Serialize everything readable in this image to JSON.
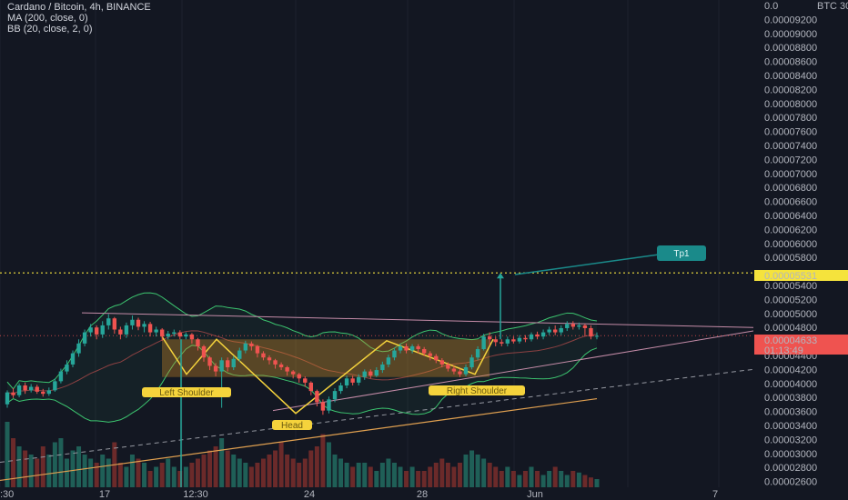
{
  "legend": {
    "symbol": "Cardano / Bitcoin, 4h, BINANCE",
    "ma": "MA (200, close, 0)",
    "bb": "BB (20, close, 2, 0)"
  },
  "annotations": {
    "left_shoulder": "Left Shoulder",
    "head": "Head",
    "right_shoulder": "Right Shoulder",
    "tp1": "Tp1"
  },
  "price_tags": {
    "target": "0.00005531",
    "current": "0.00004633",
    "countdown": "01:13:49"
  },
  "colors": {
    "background": "#131722",
    "up": "#26a69a",
    "down": "#ef5350",
    "target_line": "#f5e33c",
    "label_bg": "#f5d33c",
    "bb_band": "#3cc46f",
    "ma_line": "#e0a050",
    "resistance": "#c58ca8",
    "tp_box": "#1a8a8a"
  },
  "chart_data": {
    "type": "candlestick",
    "title": "Cardano / Bitcoin, 4h, BINANCE",
    "y_axis": {
      "unit": "BTC",
      "ticks": [
        "0.0",
        "0.00009200",
        "0.00009000",
        "0.00008800",
        "0.00008600",
        "0.00008400",
        "0.00008200",
        "0.00008000",
        "0.00007800",
        "0.00007600",
        "0.00007400",
        "0.00007200",
        "0.00007000",
        "0.00006800",
        "0.00006600",
        "0.00006400",
        "0.00006200",
        "0.00006000",
        "0.00005800",
        "0.00005600",
        "0.00005400",
        "0.00005200",
        "0.00005000",
        "0.00004800",
        "0.00004600",
        "0.00004400",
        "0.00004200",
        "0.00004000",
        "0.00003800",
        "0.00003600",
        "0.00003400",
        "0.00003200",
        "0.00003000",
        "0.00002800",
        "0.00002600"
      ],
      "ylim": [
        2.54e-05,
        9.36e-05
      ]
    },
    "x_axis": {
      "ticks": [
        ":30",
        "17",
        "12:30",
        "24",
        "28",
        "Jun",
        "7"
      ]
    },
    "last_price": 4.633e-05,
    "target_price": 5.531e-05,
    "candles": [
      [
        3.65e-05,
        3.82e-05,
        3.6e-05,
        3.85e-05
      ],
      [
        3.82e-05,
        3.78e-05,
        3.74e-05,
        3.88e-05
      ],
      [
        3.78e-05,
        3.92e-05,
        3.75e-05,
        3.95e-05
      ],
      [
        3.92e-05,
        3.85e-05,
        3.8e-05,
        3.96e-05
      ],
      [
        3.85e-05,
        3.9e-05,
        3.82e-05,
        3.94e-05
      ],
      [
        3.9e-05,
        3.83e-05,
        3.8e-05,
        3.93e-05
      ],
      [
        3.83e-05,
        3.8e-05,
        3.76e-05,
        3.87e-05
      ],
      [
        3.8e-05,
        3.85e-05,
        3.77e-05,
        3.89e-05
      ],
      [
        3.85e-05,
        3.98e-05,
        3.83e-05,
        4.02e-05
      ],
      [
        3.98e-05,
        4.12e-05,
        3.95e-05,
        4.16e-05
      ],
      [
        4.12e-05,
        4.22e-05,
        4.08e-05,
        4.28e-05
      ],
      [
        4.22e-05,
        4.38e-05,
        4.18e-05,
        4.42e-05
      ],
      [
        4.38e-05,
        4.52e-05,
        4.33e-05,
        4.58e-05
      ],
      [
        4.52e-05,
        4.68e-05,
        4.48e-05,
        4.72e-05
      ],
      [
        4.68e-05,
        4.75e-05,
        4.62e-05,
        4.8e-05
      ],
      [
        4.75e-05,
        4.65e-05,
        4.58e-05,
        4.78e-05
      ],
      [
        4.65e-05,
        4.78e-05,
        4.6e-05,
        4.84e-05
      ],
      [
        4.78e-05,
        4.88e-05,
        4.72e-05,
        4.94e-05
      ],
      [
        4.88e-05,
        4.72e-05,
        4.66e-05,
        4.9e-05
      ],
      [
        4.72e-05,
        4.65e-05,
        4.58e-05,
        4.76e-05
      ],
      [
        4.65e-05,
        4.78e-05,
        4.6e-05,
        4.82e-05
      ],
      [
        4.78e-05,
        4.86e-05,
        4.72e-05,
        4.92e-05
      ],
      [
        4.86e-05,
        4.76e-05,
        4.71e-05,
        4.89e-05
      ],
      [
        4.76e-05,
        4.8e-05,
        4.68e-05,
        4.84e-05
      ],
      [
        4.8e-05,
        4.68e-05,
        4.62e-05,
        4.83e-05
      ],
      [
        4.68e-05,
        4.72e-05,
        4.62e-05,
        4.76e-05
      ],
      [
        4.72e-05,
        4.62e-05,
        4.56e-05,
        4.74e-05
      ],
      [
        4.62e-05,
        4.66e-05,
        4.58e-05,
        4.7e-05
      ],
      [
        4.66e-05,
        4.68e-05,
        4.62e-05,
        4.72e-05
      ],
      [
        4.68e-05,
        4.62e-05,
        4.58e-05,
        4.71e-05
      ],
      [
        4.62e-05,
        4.65e-05,
        4.58e-05,
        4.68e-05
      ],
      [
        4.65e-05,
        4.58e-05,
        4.52e-05,
        4.67e-05
      ],
      [
        4.58e-05,
        4.48e-05,
        4.42e-05,
        4.6e-05
      ],
      [
        4.48e-05,
        4.32e-05,
        4.26e-05,
        4.5e-05
      ],
      [
        4.32e-05,
        4.2e-05,
        4.14e-05,
        4.34e-05
      ],
      [
        4.2e-05,
        4.12e-05,
        4.05e-05,
        4.24e-05
      ],
      [
        4.12e-05,
        4.28e-05,
        3.6e-05,
        4.32e-05
      ],
      [
        4.28e-05,
        4.18e-05,
        4.12e-05,
        4.32e-05
      ],
      [
        4.18e-05,
        4.3e-05,
        4.14e-05,
        4.34e-05
      ],
      [
        4.3e-05,
        4.42e-05,
        4.26e-05,
        4.46e-05
      ],
      [
        4.42e-05,
        4.52e-05,
        4.38e-05,
        4.56e-05
      ],
      [
        4.52e-05,
        4.48e-05,
        4.42e-05,
        4.55e-05
      ],
      [
        4.48e-05,
        4.38e-05,
        4.32e-05,
        4.5e-05
      ],
      [
        4.38e-05,
        4.32e-05,
        4.28e-05,
        4.41e-05
      ],
      [
        4.32e-05,
        4.28e-05,
        4.22e-05,
        4.35e-05
      ],
      [
        4.28e-05,
        4.22e-05,
        4.16e-05,
        4.3e-05
      ],
      [
        4.22e-05,
        4.18e-05,
        4.14e-05,
        4.25e-05
      ],
      [
        4.18e-05,
        4.12e-05,
        4.06e-05,
        4.2e-05
      ],
      [
        4.12e-05,
        4.08e-05,
        4.02e-05,
        4.14e-05
      ],
      [
        4.08e-05,
        4.02e-05,
        3.96e-05,
        4.1e-05
      ],
      [
        4.02e-05,
        3.96e-05,
        3.9e-05,
        4.05e-05
      ],
      [
        3.96e-05,
        3.84e-05,
        3.78e-05,
        3.98e-05
      ],
      [
        3.84e-05,
        3.68e-05,
        3.62e-05,
        3.86e-05
      ],
      [
        3.68e-05,
        3.56e-05,
        3.5e-05,
        3.72e-05
      ],
      [
        3.56e-05,
        3.72e-05,
        3.52e-05,
        3.76e-05
      ],
      [
        3.72e-05,
        3.84e-05,
        3.68e-05,
        3.88e-05
      ],
      [
        3.84e-05,
        3.92e-05,
        3.8e-05,
        3.96e-05
      ],
      [
        3.92e-05,
        4.02e-05,
        3.88e-05,
        4.06e-05
      ],
      [
        4.02e-05,
        3.96e-05,
        3.92e-05,
        4.06e-05
      ],
      [
        3.96e-05,
        4.04e-05,
        3.92e-05,
        4.08e-05
      ],
      [
        4.04e-05,
        4.12e-05,
        4e-05,
        4.15e-05
      ],
      [
        4.12e-05,
        4.06e-05,
        4.02e-05,
        4.15e-05
      ],
      [
        4.06e-05,
        4.14e-05,
        4.04e-05,
        4.18e-05
      ],
      [
        4.14e-05,
        4.22e-05,
        4.1e-05,
        4.26e-05
      ],
      [
        4.22e-05,
        4.32e-05,
        4.18e-05,
        4.36e-05
      ],
      [
        4.32e-05,
        4.42e-05,
        4.28e-05,
        4.46e-05
      ],
      [
        4.42e-05,
        4.48e-05,
        4.38e-05,
        4.52e-05
      ],
      [
        4.48e-05,
        4.42e-05,
        4.38e-05,
        4.52e-05
      ],
      [
        4.42e-05,
        4.48e-05,
        4.38e-05,
        4.51e-05
      ],
      [
        4.48e-05,
        4.44e-05,
        4.38e-05,
        4.51e-05
      ],
      [
        4.44e-05,
        4.38e-05,
        4.34e-05,
        4.47e-05
      ],
      [
        4.38e-05,
        4.34e-05,
        4.28e-05,
        4.41e-05
      ],
      [
        4.34e-05,
        4.28e-05,
        4.24e-05,
        4.37e-05
      ],
      [
        4.28e-05,
        4.22e-05,
        4.18e-05,
        4.31e-05
      ],
      [
        4.22e-05,
        4.16e-05,
        4.12e-05,
        4.25e-05
      ],
      [
        4.16e-05,
        4.12e-05,
        4.08e-05,
        4.2e-05
      ],
      [
        4.12e-05,
        4.08e-05,
        4.04e-05,
        4.16e-05
      ],
      [
        4.08e-05,
        4.18e-05,
        4.05e-05,
        4.22e-05
      ],
      [
        4.18e-05,
        4.32e-05,
        4.15e-05,
        4.36e-05
      ],
      [
        4.32e-05,
        4.44e-05,
        4.28e-05,
        4.48e-05
      ],
      [
        4.44e-05,
        4.62e-05,
        4.42e-05,
        4.66e-05
      ],
      [
        4.62e-05,
        4.58e-05,
        4.5e-05,
        4.68e-05
      ],
      [
        4.58e-05,
        4.54e-05,
        4.48e-05,
        4.62e-05
      ],
      [
        4.54e-05,
        4.52e-05,
        4.48e-05,
        4.58e-05
      ],
      [
        4.52e-05,
        4.58e-05,
        4.48e-05,
        4.62e-05
      ],
      [
        4.58e-05,
        4.55e-05,
        4.52e-05,
        4.62e-05
      ],
      [
        4.55e-05,
        4.6e-05,
        4.52e-05,
        4.64e-05
      ],
      [
        4.6e-05,
        4.58e-05,
        4.54e-05,
        4.64e-05
      ],
      [
        4.58e-05,
        4.65e-05,
        4.55e-05,
        4.68e-05
      ],
      [
        4.65e-05,
        4.62e-05,
        4.58e-05,
        4.69e-05
      ],
      [
        4.62e-05,
        4.68e-05,
        4.58e-05,
        4.72e-05
      ],
      [
        4.68e-05,
        4.72e-05,
        4.64e-05,
        4.76e-05
      ],
      [
        4.72e-05,
        4.68e-05,
        4.64e-05,
        4.78e-05
      ],
      [
        4.68e-05,
        4.74e-05,
        4.64e-05,
        4.78e-05
      ],
      [
        4.74e-05,
        4.8e-05,
        4.7e-05,
        4.84e-05
      ],
      [
        4.8e-05,
        4.76e-05,
        4.72e-05,
        4.84e-05
      ],
      [
        4.76e-05,
        4.78e-05,
        4.72e-05,
        4.82e-05
      ],
      [
        4.78e-05,
        4.74e-05,
        4.62e-05,
        4.8e-05
      ],
      [
        4.74e-05,
        4.62e-05,
        4.58e-05,
        4.78e-05
      ],
      [
        4.62e-05,
        4.63e-05,
        4.58e-05,
        4.68e-05
      ]
    ],
    "volume": [
      0.8,
      0.6,
      0.5,
      0.45,
      0.4,
      0.35,
      0.5,
      0.4,
      0.55,
      0.6,
      0.35,
      0.45,
      0.5,
      0.4,
      0.35,
      0.3,
      0.4,
      0.35,
      0.55,
      0.3,
      0.25,
      0.4,
      0.35,
      0.3,
      0.2,
      0.25,
      0.3,
      0.35,
      0.25,
      0.2,
      0.25,
      0.3,
      0.35,
      0.4,
      0.45,
      0.5,
      0.6,
      0.45,
      0.4,
      0.35,
      0.3,
      0.25,
      0.3,
      0.35,
      0.4,
      0.45,
      0.55,
      0.4,
      0.35,
      0.3,
      0.35,
      0.45,
      0.5,
      0.65,
      0.55,
      0.4,
      0.35,
      0.3,
      0.25,
      0.3,
      0.3,
      0.25,
      0.2,
      0.3,
      0.35,
      0.3,
      0.25,
      0.2,
      0.25,
      0.2,
      0.2,
      0.25,
      0.3,
      0.35,
      0.3,
      0.25,
      0.3,
      0.4,
      0.45,
      0.4,
      0.35,
      0.3,
      0.25,
      0.2,
      0.25,
      0.2,
      0.15,
      0.2,
      0.25,
      0.2,
      0.15,
      0.2,
      0.25,
      0.2,
      0.15,
      0.2,
      0.18,
      0.15,
      0.12,
      0.1
    ]
  }
}
